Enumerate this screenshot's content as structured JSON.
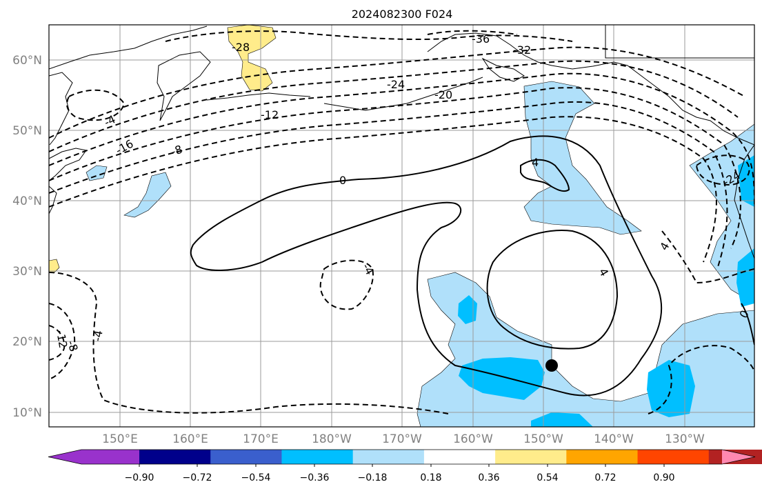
{
  "title": "2024082300 F024",
  "lat_labels": [
    "60°N",
    "50°N",
    "40°N",
    "30°N",
    "20°N",
    "10°N"
  ],
  "lon_labels": [
    "150°E",
    "160°E",
    "170°E",
    "180°W",
    "170°W",
    "160°W",
    "150°W",
    "140°W",
    "130°W"
  ],
  "contour_labels": [
    "-36",
    "-32",
    "-28",
    "-24",
    "-20",
    "-16",
    "-12",
    "-8",
    "0",
    "4",
    "4",
    "4",
    "-4",
    "-4",
    "-12",
    "-8",
    "-4",
    "-24",
    "0"
  ],
  "colorbar": {
    "ticks": [
      "−0.90",
      "−0.72",
      "−0.54",
      "−0.36",
      "−0.18",
      "0.18",
      "0.36",
      "0.54",
      "0.72",
      "0.90"
    ],
    "colors": [
      "#9932cc",
      "#00008b",
      "#3a5fcd",
      "#00bfff",
      "#b0e0fa",
      "#ffffff",
      "#ffec8b",
      "#ffa500",
      "#ff4500",
      "#b22222",
      "#ff88b0"
    ]
  },
  "shading": {
    "light_blue": "#b0e0fa",
    "deep_sky_blue": "#00bfff",
    "light_yellow": "#ffec8b"
  },
  "marker": {
    "type": "dot",
    "color": "#000000"
  }
}
